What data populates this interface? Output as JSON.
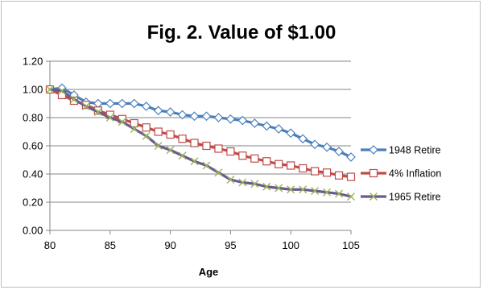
{
  "chart_data": {
    "type": "line",
    "title": "Fig. 2.  Value of $1.00",
    "xlabel": "Age",
    "ylabel": "",
    "xlim": [
      80,
      105
    ],
    "ylim": [
      0,
      1.2
    ],
    "x_ticks": [
      80,
      85,
      90,
      95,
      100,
      105
    ],
    "y_ticks": [
      "0.00",
      "0.20",
      "0.40",
      "0.60",
      "0.80",
      "1.00",
      "1.20"
    ],
    "grid": "horizontal",
    "legend_position": "right",
    "x": [
      80,
      81,
      82,
      83,
      84,
      85,
      86,
      87,
      88,
      89,
      90,
      91,
      92,
      93,
      94,
      95,
      96,
      97,
      98,
      99,
      100,
      101,
      102,
      103,
      104,
      105
    ],
    "series": [
      {
        "name": "1948 Retire",
        "color": "#4a7ebb",
        "marker": "diamond",
        "values": [
          1.0,
          1.01,
          0.96,
          0.91,
          0.9,
          0.9,
          0.9,
          0.9,
          0.88,
          0.85,
          0.84,
          0.82,
          0.81,
          0.81,
          0.8,
          0.79,
          0.78,
          0.76,
          0.74,
          0.72,
          0.69,
          0.65,
          0.61,
          0.59,
          0.56,
          0.52
        ]
      },
      {
        "name": "4% Inflation",
        "color": "#be4b48",
        "marker": "square",
        "values": [
          1.0,
          0.96,
          0.92,
          0.89,
          0.85,
          0.82,
          0.79,
          0.76,
          0.73,
          0.7,
          0.68,
          0.65,
          0.62,
          0.6,
          0.58,
          0.56,
          0.53,
          0.51,
          0.49,
          0.47,
          0.46,
          0.44,
          0.42,
          0.41,
          0.39,
          0.38
        ]
      },
      {
        "name": "1965 Retire",
        "color": "#98b954",
        "line_color": "#6b5a8e",
        "marker": "x",
        "values": [
          1.0,
          0.99,
          0.93,
          0.88,
          0.84,
          0.8,
          0.77,
          0.72,
          0.67,
          0.6,
          0.57,
          0.53,
          0.49,
          0.46,
          0.41,
          0.36,
          0.34,
          0.33,
          0.31,
          0.3,
          0.29,
          0.29,
          0.28,
          0.27,
          0.26,
          0.24
        ]
      }
    ]
  }
}
